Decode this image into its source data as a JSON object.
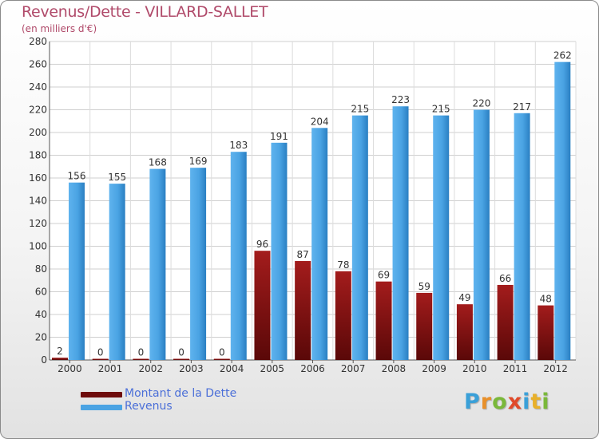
{
  "title": "Revenus/Dette - VILLARD-SALLET",
  "subtitle": "(en milliers d'€)",
  "legend": {
    "debt_label": "Montant de la Dette",
    "revenue_label": "Revenus"
  },
  "logo": {
    "letters": [
      "P",
      "r",
      "o",
      "x",
      "i",
      "t",
      "i"
    ],
    "colors": [
      "#3aa0d8",
      "#e8902a",
      "#7ab83a",
      "#e04a2a",
      "#3aa0d8",
      "#e8b02a",
      "#7ab83a"
    ]
  },
  "colors": {
    "debt": "#7a0f0f",
    "revenue": "#4aa3e3",
    "title": "#b04a6a",
    "legend_text": "#4b6fd8"
  },
  "chart_data": {
    "type": "bar",
    "categories": [
      "2000",
      "2001",
      "2002",
      "2003",
      "2004",
      "2005",
      "2006",
      "2007",
      "2008",
      "2009",
      "2010",
      "2011",
      "2012"
    ],
    "series": [
      {
        "name": "Montant de la Dette",
        "values": [
          2,
          0,
          0,
          0,
          0,
          96,
          87,
          78,
          69,
          59,
          49,
          66,
          48
        ]
      },
      {
        "name": "Revenus",
        "values": [
          156,
          155,
          168,
          169,
          183,
          191,
          204,
          215,
          223,
          215,
          220,
          217,
          262
        ]
      }
    ],
    "ylim": [
      0,
      280
    ],
    "yticks": [
      0,
      20,
      40,
      60,
      80,
      100,
      120,
      140,
      160,
      180,
      200,
      220,
      240,
      260,
      280
    ],
    "grid": true,
    "legend_position": "bottom-left"
  }
}
